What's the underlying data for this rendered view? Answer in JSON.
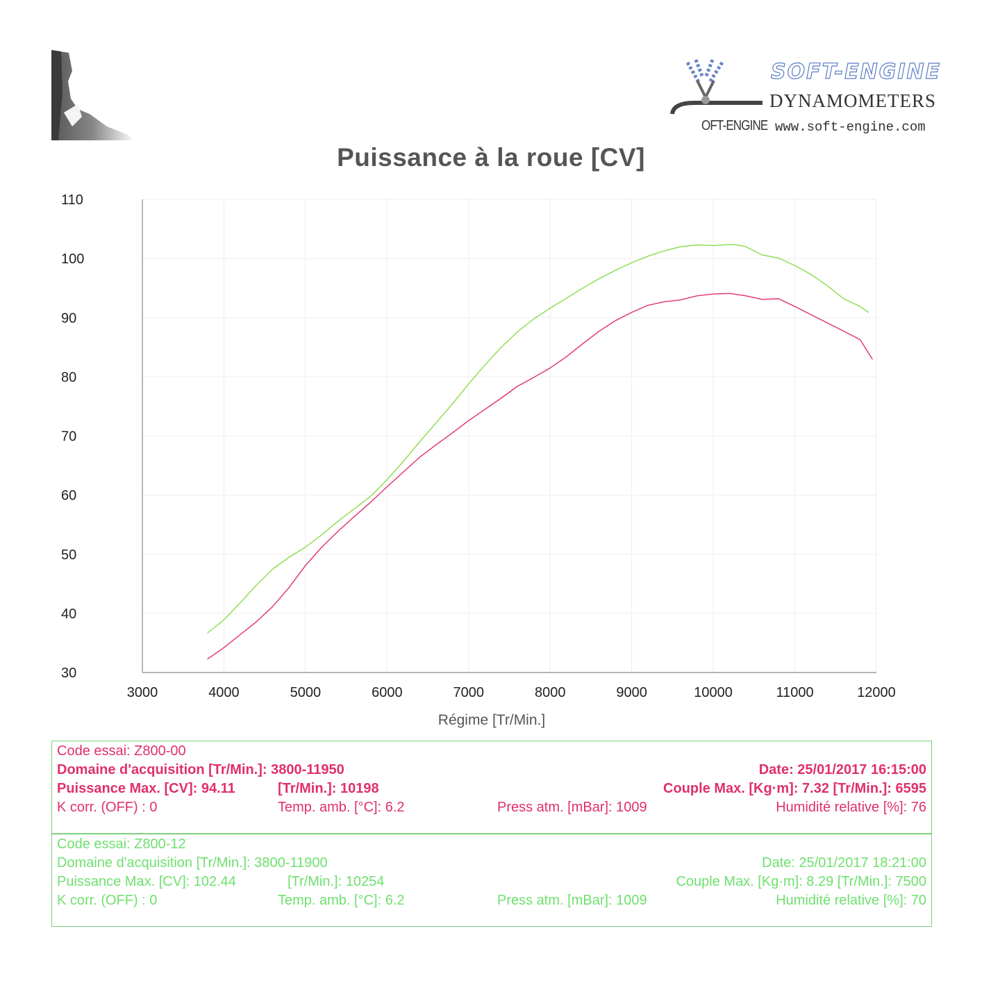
{
  "header": {
    "brand_title": "SOFT-ENGINE",
    "brand_subtitle": "DYNAMOMETERS",
    "brand_short": "OFT-ENGINE",
    "brand_url": "www.soft-engine.com"
  },
  "colors": {
    "run1": "#e0306a",
    "run2": "#8bdc4a",
    "axis": "#888888",
    "grid": "#eeeeee"
  },
  "chart_data": {
    "type": "line",
    "title": "Puissance à la roue  [CV]",
    "xlabel": "Régime [Tr/Min.]",
    "ylabel": "",
    "xlim": [
      3000,
      12000
    ],
    "ylim": [
      30,
      110
    ],
    "x_ticks": [
      3000,
      4000,
      5000,
      6000,
      7000,
      8000,
      9000,
      10000,
      11000,
      12000
    ],
    "y_ticks": [
      30,
      40,
      50,
      60,
      70,
      80,
      90,
      100,
      110
    ],
    "series": [
      {
        "name": "Z800-00",
        "color": "#e0306a",
        "x": [
          3800,
          4000,
          4200,
          4400,
          4600,
          4800,
          5000,
          5200,
          5400,
          5600,
          5800,
          6000,
          6200,
          6400,
          6600,
          6800,
          7000,
          7200,
          7400,
          7600,
          7800,
          8000,
          8200,
          8400,
          8600,
          8800,
          9000,
          9200,
          9400,
          9600,
          9800,
          10000,
          10200,
          10400,
          10600,
          10800,
          11000,
          11200,
          11400,
          11600,
          11800,
          11950
        ],
        "y": [
          32.3,
          34.2,
          36.4,
          38.6,
          41.2,
          44.4,
          48.1,
          51.2,
          53.9,
          56.4,
          58.8,
          61.4,
          63.9,
          66.4,
          68.5,
          70.5,
          72.6,
          74.5,
          76.4,
          78.4,
          79.9,
          81.5,
          83.4,
          85.6,
          87.7,
          89.5,
          90.9,
          92.1,
          92.7,
          93.0,
          93.7,
          94.0,
          94.1,
          93.7,
          93.1,
          93.2,
          91.9,
          90.5,
          89.1,
          87.7,
          86.3,
          83.0
        ]
      },
      {
        "name": "Z800-12",
        "color": "#8bdc4a",
        "x": [
          3800,
          4000,
          4200,
          4400,
          4600,
          4800,
          5000,
          5200,
          5400,
          5600,
          5800,
          6000,
          6200,
          6400,
          6600,
          6800,
          7000,
          7200,
          7400,
          7600,
          7800,
          8000,
          8200,
          8400,
          8600,
          8800,
          9000,
          9200,
          9400,
          9600,
          9800,
          10000,
          10254,
          10400,
          10600,
          10800,
          11000,
          11200,
          11400,
          11600,
          11800,
          11900
        ],
        "y": [
          36.7,
          38.9,
          41.8,
          44.8,
          47.5,
          49.5,
          51.2,
          53.3,
          55.6,
          57.7,
          59.8,
          62.6,
          65.7,
          69.0,
          72.2,
          75.4,
          78.8,
          82.0,
          85.0,
          87.6,
          89.8,
          91.6,
          93.3,
          95.0,
          96.6,
          98.0,
          99.3,
          100.4,
          101.3,
          102.0,
          102.3,
          102.2,
          102.4,
          102.0,
          100.6,
          100.1,
          98.8,
          97.3,
          95.4,
          93.2,
          91.9,
          90.9
        ]
      }
    ]
  },
  "runs": [
    {
      "code": "Code essai: Z800-00",
      "domain": "Domaine d'acquisition [Tr/Min.]: 3800-11950",
      "date": "Date: 25/01/2017   16:15:00",
      "power": "Puissance Max. [CV]: 94.11",
      "power_rpm": "[Tr/Min.]: 10198",
      "torque": "Couple Max. [Kg·m]: 7.32   [Tr/Min.]: 6595",
      "kcorr": "K corr. (OFF) : 0",
      "temp": "Temp. amb. [°C]: 6.2",
      "press": "Press atm. [mBar]: 1009",
      "humidity": "Humidité relative [%]: 76"
    },
    {
      "code": "Code essai: Z800-12",
      "domain": "Domaine d'acquisition  [Tr/Min.]: 3800-11900",
      "date": "Date: 25/01/2017   18:21:00",
      "power": "Puissance Max. [CV]: 102.44",
      "power_rpm": "[Tr/Min.]: 10254",
      "torque": "Couple Max. [Kg·m]: 8.29   [Tr/Min.]: 7500",
      "kcorr": "K corr. (OFF) : 0",
      "temp": "Temp. amb. [°C]: 6.2",
      "press": "Press atm. [mBar]: 1009",
      "humidity": "Humidité relative [%]: 70"
    }
  ]
}
